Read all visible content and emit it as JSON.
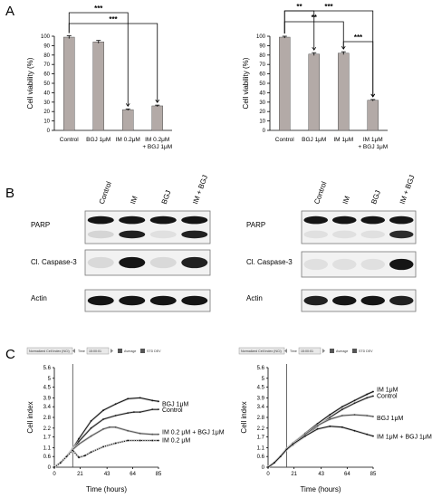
{
  "panels": {
    "a": "A",
    "b": "B",
    "c": "C"
  },
  "chart_data": [
    {
      "type": "bar",
      "ylabel": "Cell viability (%)",
      "ylim": [
        0,
        100
      ],
      "yticks": [
        "0",
        "10",
        "20",
        "30",
        "40",
        "50",
        "60",
        "70",
        "80",
        "90",
        "100"
      ],
      "categories": [
        "Control",
        "BGJ 1μM",
        "IM 0.2μM",
        "IM 0.2μM\n+ BGJ 1μM"
      ],
      "values": [
        99,
        94,
        22,
        26
      ],
      "errors": [
        1.5,
        1.5,
        0.8,
        0.8
      ],
      "significance": [
        {
          "from": 0,
          "to": 2,
          "label": "***"
        },
        {
          "from": 0,
          "to": 3,
          "label": "***"
        }
      ]
    },
    {
      "type": "bar",
      "ylabel": "Cell viability (%)",
      "ylim": [
        0,
        100
      ],
      "yticks": [
        "0",
        "10",
        "20",
        "30",
        "40",
        "50",
        "60",
        "70",
        "80",
        "90",
        "100"
      ],
      "categories": [
        "Control",
        "BGJ 1μM",
        "IM 1μM",
        "IM 1μM\n+ BGJ 1μM"
      ],
      "values": [
        99,
        81,
        82,
        32
      ],
      "errors": [
        1,
        1.5,
        1.5,
        0.8
      ],
      "significance": [
        {
          "from": 0,
          "to": 1,
          "label": "**"
        },
        {
          "from": 0,
          "to": 2,
          "label": "**"
        },
        {
          "from": 0,
          "to": 3,
          "label": "***"
        },
        {
          "from": 2,
          "to": 3,
          "label": "***"
        }
      ]
    },
    {
      "type": "line",
      "ylabel": "Cell index",
      "xlabel": "Time (hours)",
      "xticks": [
        0,
        21,
        43,
        64,
        85
      ],
      "yticks": [
        0,
        0.6,
        1.1,
        1.7,
        2.2,
        2.8,
        3.4,
        3.9,
        4.5,
        5,
        5.6
      ],
      "ylim": [
        0,
        5.6
      ],
      "xlim": [
        0,
        85
      ],
      "marker_x": 15,
      "series": [
        {
          "name": "BGJ 1μM",
          "style": "solid",
          "points": [
            [
              0,
              0
            ],
            [
              5,
              0.25
            ],
            [
              10,
              0.6
            ],
            [
              15,
              1.05
            ],
            [
              20,
              1.6
            ],
            [
              30,
              2.6
            ],
            [
              40,
              3.2
            ],
            [
              50,
              3.55
            ],
            [
              60,
              3.85
            ],
            [
              70,
              3.9
            ],
            [
              80,
              3.75
            ],
            [
              85,
              3.7
            ]
          ]
        },
        {
          "name": "Control",
          "style": "solid",
          "points": [
            [
              0,
              0
            ],
            [
              5,
              0.25
            ],
            [
              10,
              0.6
            ],
            [
              15,
              1.0
            ],
            [
              20,
              1.45
            ],
            [
              30,
              2.2
            ],
            [
              40,
              2.7
            ],
            [
              50,
              2.9
            ],
            [
              60,
              3.05
            ],
            [
              65,
              3.1
            ],
            [
              70,
              3.1
            ],
            [
              80,
              3.25
            ],
            [
              85,
              3.25
            ]
          ]
        },
        {
          "name": "IM 0.2 μM + BGJ 1μM",
          "style": "solid",
          "points": [
            [
              0,
              0
            ],
            [
              5,
              0.25
            ],
            [
              10,
              0.6
            ],
            [
              15,
              1.0
            ],
            [
              20,
              1.3
            ],
            [
              30,
              1.75
            ],
            [
              40,
              2.15
            ],
            [
              45,
              2.25
            ],
            [
              50,
              2.25
            ],
            [
              60,
              2.05
            ],
            [
              70,
              1.9
            ],
            [
              80,
              1.85
            ],
            [
              85,
              1.85
            ]
          ]
        },
        {
          "name": "IM 0.2 μM",
          "style": "dotted",
          "points": [
            [
              0,
              0
            ],
            [
              5,
              0.25
            ],
            [
              10,
              0.6
            ],
            [
              15,
              0.95
            ],
            [
              20,
              0.55
            ],
            [
              25,
              0.65
            ],
            [
              30,
              0.85
            ],
            [
              40,
              1.15
            ],
            [
              50,
              1.35
            ],
            [
              60,
              1.5
            ],
            [
              70,
              1.5
            ],
            [
              80,
              1.5
            ],
            [
              85,
              1.5
            ]
          ]
        }
      ]
    },
    {
      "type": "line",
      "ylabel": "Cell index",
      "xlabel": "Time (hours)",
      "xticks": [
        0,
        21,
        43,
        64,
        85
      ],
      "yticks": [
        0,
        0.6,
        1.1,
        1.7,
        2.2,
        2.8,
        3.4,
        3.9,
        4.5,
        5,
        5.6
      ],
      "ylim": [
        0,
        5.6
      ],
      "xlim": [
        0,
        85
      ],
      "marker_x": 15,
      "series": [
        {
          "name": "IM 1μM",
          "style": "solid",
          "points": [
            [
              0,
              0
            ],
            [
              5,
              0.25
            ],
            [
              10,
              0.6
            ],
            [
              15,
              1.05
            ],
            [
              20,
              1.35
            ],
            [
              30,
              1.9
            ],
            [
              40,
              2.45
            ],
            [
              50,
              2.95
            ],
            [
              60,
              3.4
            ],
            [
              70,
              3.75
            ],
            [
              80,
              4.1
            ],
            [
              85,
              4.25
            ]
          ]
        },
        {
          "name": "Control",
          "style": "solid",
          "points": [
            [
              0,
              0
            ],
            [
              5,
              0.25
            ],
            [
              10,
              0.6
            ],
            [
              15,
              1.0
            ],
            [
              20,
              1.25
            ],
            [
              30,
              1.75
            ],
            [
              40,
              2.3
            ],
            [
              50,
              2.8
            ],
            [
              60,
              3.25
            ],
            [
              70,
              3.6
            ],
            [
              80,
              3.9
            ],
            [
              85,
              4.0
            ]
          ]
        },
        {
          "name": "BGJ 1μM",
          "style": "solid",
          "points": [
            [
              0,
              0
            ],
            [
              5,
              0.25
            ],
            [
              10,
              0.6
            ],
            [
              15,
              1.0
            ],
            [
              20,
              1.35
            ],
            [
              30,
              1.85
            ],
            [
              40,
              2.35
            ],
            [
              50,
              2.7
            ],
            [
              60,
              2.9
            ],
            [
              70,
              2.95
            ],
            [
              80,
              2.9
            ],
            [
              85,
              2.85
            ]
          ]
        },
        {
          "name": "IM 1μM + BGJ 1μM",
          "style": "solid",
          "points": [
            [
              0,
              0
            ],
            [
              5,
              0.25
            ],
            [
              10,
              0.6
            ],
            [
              15,
              1.0
            ],
            [
              20,
              1.3
            ],
            [
              30,
              1.75
            ],
            [
              40,
              2.15
            ],
            [
              50,
              2.3
            ],
            [
              60,
              2.25
            ],
            [
              70,
              2.05
            ],
            [
              80,
              1.85
            ],
            [
              85,
              1.75
            ]
          ]
        }
      ]
    }
  ],
  "blots": [
    {
      "lanes": [
        "Control",
        "IM",
        "BGJ",
        "IM + BGJ"
      ],
      "rows": [
        {
          "label": "PARP",
          "bands": [
            [
              0.95,
              0.1
            ],
            [
              0.95,
              0.9
            ],
            [
              0.95,
              0.05
            ],
            [
              0.95,
              0.9
            ]
          ]
        },
        {
          "label": "Cl. Caspase-3",
          "bands": [
            [
              0.08
            ],
            [
              0.95
            ],
            [
              0.08
            ],
            [
              0.9
            ]
          ]
        },
        {
          "label": "Actin",
          "bands": [
            [
              0.95
            ],
            [
              0.95
            ],
            [
              0.95
            ],
            [
              0.95
            ]
          ]
        }
      ]
    },
    {
      "lanes": [
        "Control",
        "IM",
        "BGJ",
        "IM + BGJ"
      ],
      "rows": [
        {
          "label": "PARP",
          "bands": [
            [
              0.95,
              0.05
            ],
            [
              0.95,
              0.05
            ],
            [
              0.95,
              0.05
            ],
            [
              0.95,
              0.85
            ]
          ]
        },
        {
          "label": "Cl. Caspase-3",
          "bands": [
            [
              0.05
            ],
            [
              0.05
            ],
            [
              0.05
            ],
            [
              0.95
            ]
          ]
        },
        {
          "label": "Actin",
          "bands": [
            [
              0.9
            ],
            [
              0.95
            ],
            [
              0.95
            ],
            [
              0.9
            ]
          ]
        }
      ]
    }
  ],
  "toolbars": [
    {
      "mode": "Normalized Cell Index (NCI)",
      "axis": "Time",
      "time": "15:00:01",
      "average": "Average",
      "stdev": "STD DEV"
    },
    {
      "mode": "Normalized Cell Index (NCI)",
      "axis": "Time",
      "time": "15:00:01",
      "average": "Average",
      "stdev": "STD DEV"
    }
  ]
}
